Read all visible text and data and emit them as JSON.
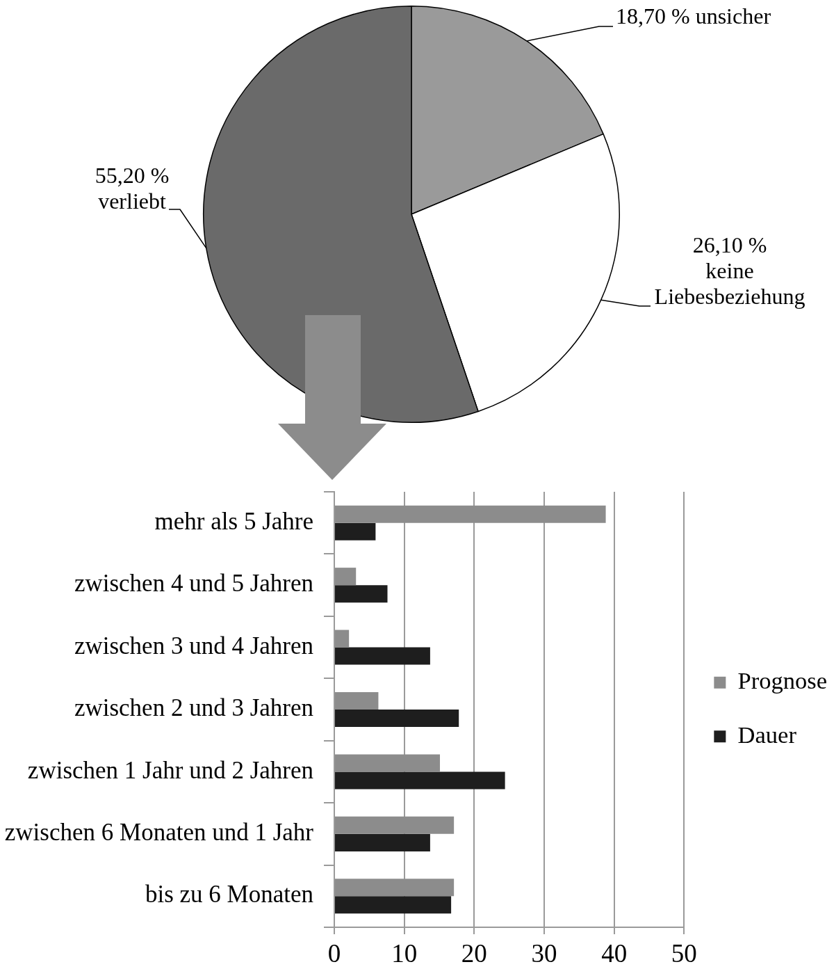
{
  "chart_data": [
    {
      "type": "pie",
      "categories": [
        "unsicher",
        "keine Liebesbeziehung",
        "verliebt"
      ],
      "values": [
        18.7,
        26.1,
        55.2
      ],
      "colors": [
        "#9a9a9a",
        "#ffffff",
        "#6a6a6a"
      ],
      "value_labels": [
        "18,70 %",
        "26,10 %",
        "55,20 %"
      ]
    },
    {
      "type": "bar",
      "orientation": "horizontal",
      "categories": [
        "mehr als 5 Jahre",
        "zwischen 4 und 5 Jahren",
        "zwischen 3 und 4 Jahren",
        "zwischen 2 und 3 Jahren",
        "zwischen 1 Jahr und 2 Jahren",
        "zwischen 6 Monaten und 1 Jahr",
        "bis zu 6 Monaten"
      ],
      "series": [
        {
          "name": "Prognose",
          "color": "#8c8c8c",
          "values": [
            38.8,
            3.1,
            2.1,
            6.3,
            15.1,
            17.1,
            17.1
          ]
        },
        {
          "name": "Dauer",
          "color": "#1e1e1e",
          "values": [
            5.9,
            7.6,
            13.7,
            17.8,
            24.4,
            13.7,
            16.7
          ]
        }
      ],
      "xlim": [
        0,
        50
      ],
      "xticks": [
        0,
        10,
        20,
        30,
        40,
        50
      ],
      "grid": "x",
      "legend": "right"
    }
  ]
}
